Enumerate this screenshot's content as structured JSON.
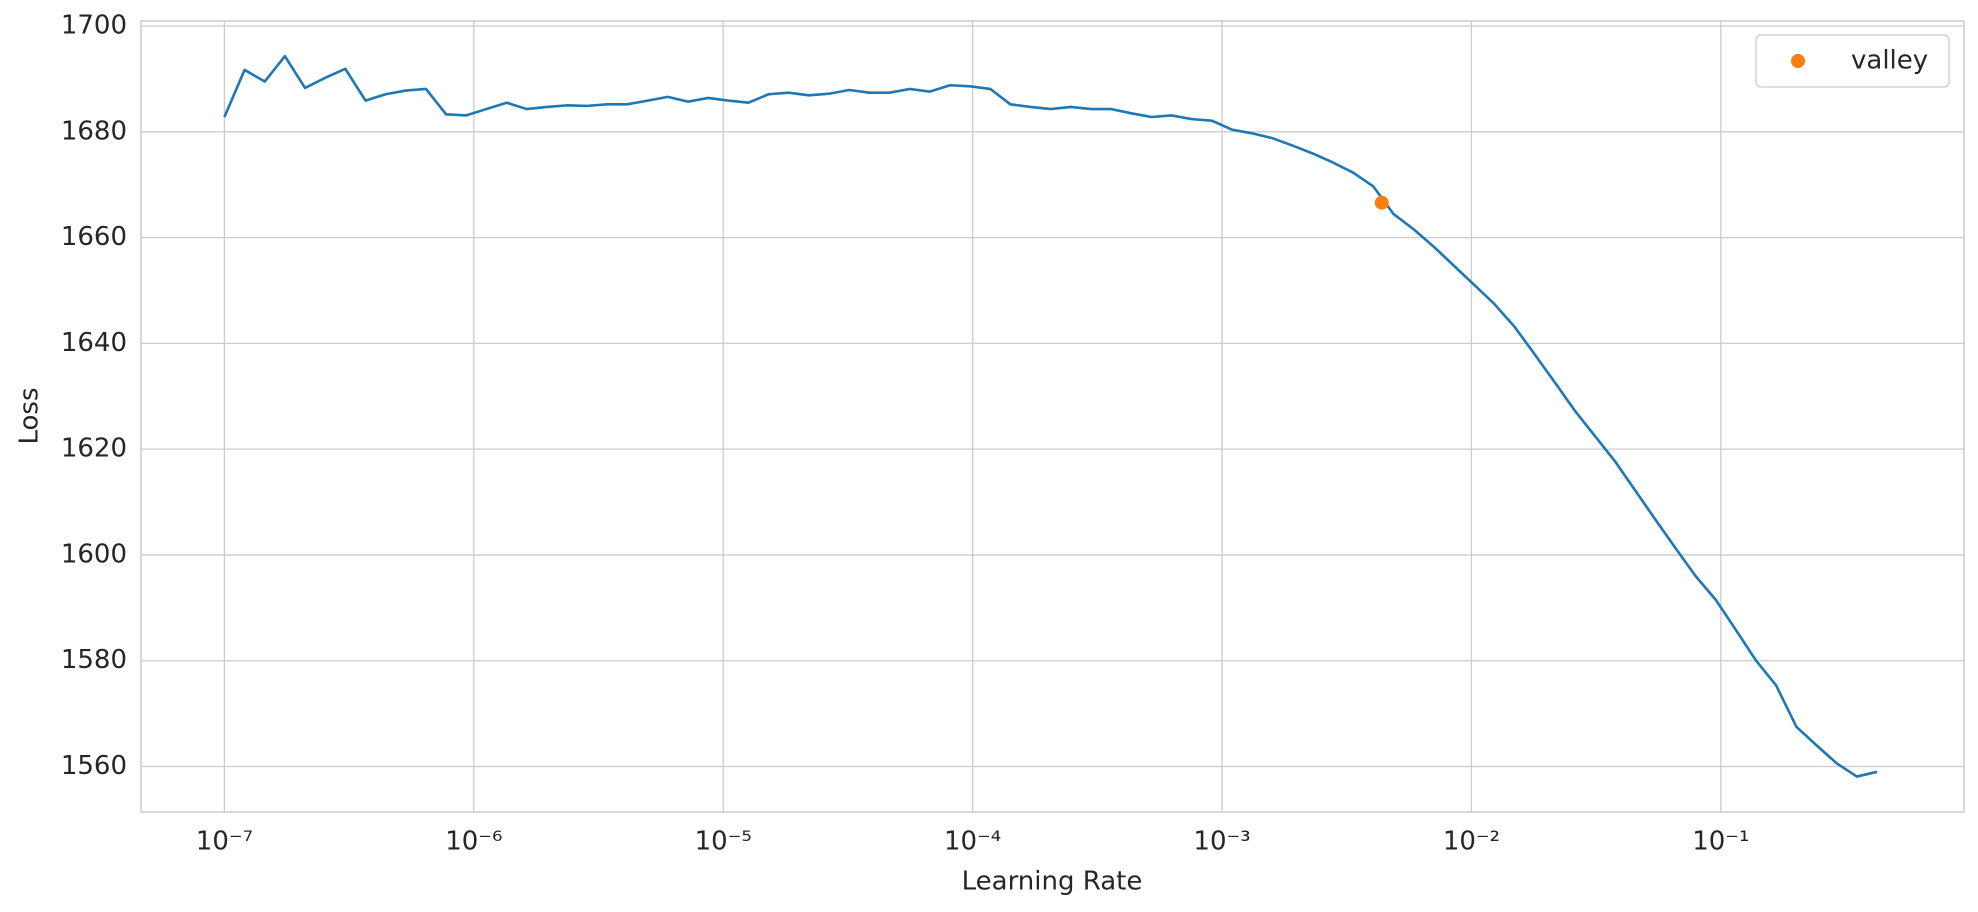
{
  "chart_data": {
    "type": "line",
    "xlabel": "Learning Rate",
    "ylabel": "Loss",
    "xscale": "log",
    "grid": true,
    "legend": "upper right",
    "x": [
      1e-07,
      1.205e-07,
      1.451e-07,
      1.748e-07,
      2.105e-07,
      2.535e-07,
      3.054e-07,
      3.679e-07,
      4.431e-07,
      5.337e-07,
      6.428e-07,
      7.743e-07,
      9.326e-07,
      1.123e-06,
      1.353e-06,
      1.63e-06,
      1.963e-06,
      2.364e-06,
      2.848e-06,
      3.43e-06,
      4.132e-06,
      4.977e-06,
      5.995e-06,
      7.221e-06,
      8.697e-06,
      1.048e-05,
      1.262e-05,
      1.52e-05,
      1.831e-05,
      2.205e-05,
      2.656e-05,
      3.199e-05,
      3.853e-05,
      4.642e-05,
      5.591e-05,
      6.734e-05,
      8.111e-05,
      9.77e-05,
      0.0001177,
      0.0001417,
      0.0001707,
      0.0002056,
      0.0002477,
      0.0002984,
      0.0003594,
      0.0004329,
      0.0005214,
      0.000628,
      0.0007565,
      0.0009112,
      0.001098,
      0.001322,
      0.001592,
      0.001918,
      0.00231,
      0.002783,
      0.003352,
      0.004037,
      0.004863,
      0.005857,
      0.007055,
      0.008498,
      0.01024,
      0.01233,
      0.01485,
      0.01789,
      0.02154,
      0.02595,
      0.03126,
      0.03765,
      0.04535,
      0.05462,
      0.06579,
      0.07925,
      0.09545,
      0.115,
      0.1385,
      0.1668,
      0.2009,
      0.242,
      0.2915,
      0.3511,
      0.4229
    ],
    "series": [
      {
        "color": "#1f77b4",
        "values": [
          1682.8,
          1691.7,
          1689.5,
          1694.3,
          1688.3,
          1690.2,
          1691.9,
          1685.9,
          1687.1,
          1687.8,
          1688.1,
          1683.3,
          1683.1,
          1684.3,
          1685.5,
          1684.3,
          1684.7,
          1685.0,
          1684.9,
          1685.2,
          1685.2,
          1685.9,
          1686.6,
          1685.7,
          1686.4,
          1685.9,
          1685.5,
          1687.1,
          1687.4,
          1686.9,
          1687.2,
          1687.9,
          1687.4,
          1687.4,
          1688.1,
          1687.6,
          1688.8,
          1688.6,
          1688.1,
          1685.2,
          1684.7,
          1684.3,
          1684.7,
          1684.3,
          1684.3,
          1683.5,
          1682.8,
          1683.1,
          1682.4,
          1682.1,
          1680.4,
          1679.7,
          1678.8,
          1677.4,
          1675.9,
          1674.2,
          1672.3,
          1669.7,
          1664.5,
          1661.6,
          1658.3,
          1654.7,
          1651.1,
          1647.5,
          1643.2,
          1638.0,
          1632.7,
          1627.3,
          1622.5,
          1617.7,
          1612.2,
          1606.7,
          1601.3,
          1596.0,
          1591.5,
          1585.8,
          1580.0,
          1575.3,
          1567.5,
          1564.0,
          1560.6,
          1558.1,
          1559.0
        ]
      }
    ],
    "markers": [
      {
        "name": "valley",
        "color": "#ff7f0e",
        "x": 0.00437,
        "y": 1666.6
      }
    ],
    "xlim": [
      4.63e-08,
      0.944
    ],
    "xticks": [
      {
        "value": 1e-07,
        "label": "10⁻⁷"
      },
      {
        "value": 1e-06,
        "label": "10⁻⁶"
      },
      {
        "value": 1e-05,
        "label": "10⁻⁵"
      },
      {
        "value": 0.0001,
        "label": "10⁻⁴"
      },
      {
        "value": 0.001,
        "label": "10⁻³"
      },
      {
        "value": 0.01,
        "label": "10⁻²"
      },
      {
        "value": 0.1,
        "label": "10⁻¹"
      }
    ],
    "ylim": [
      1551.4,
      1700.95
    ],
    "yticks": [
      1560,
      1580,
      1600,
      1620,
      1640,
      1660,
      1680,
      1700
    ]
  }
}
